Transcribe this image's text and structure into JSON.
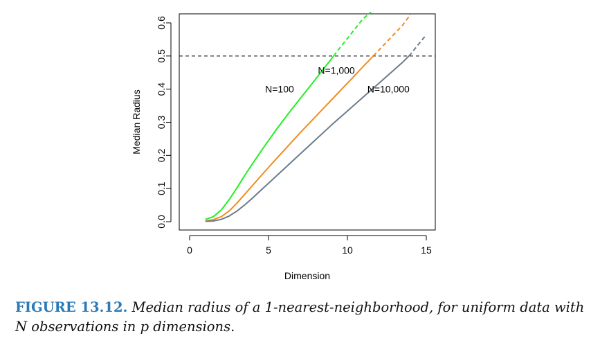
{
  "chart_data": {
    "type": "line",
    "xlabel": "Dimension",
    "ylabel": "Median Radius",
    "xlim": [
      0,
      15
    ],
    "ylim": [
      0,
      0.6
    ],
    "x_ticks": [
      0,
      5,
      10,
      15
    ],
    "y_ticks": [
      0.0,
      0.1,
      0.2,
      0.3,
      0.4,
      0.5,
      0.6
    ],
    "x_tick_labels": [
      "0",
      "5",
      "10",
      "15"
    ],
    "y_tick_labels": [
      "0.0",
      "0.1",
      "0.2",
      "0.3",
      "0.4",
      "0.5",
      "0.6"
    ],
    "grid": false,
    "reference_line": {
      "y": 0.5,
      "style": "dashed",
      "color": "#000000"
    },
    "series": [
      {
        "name": "N=100",
        "color": "#22ee22",
        "x": [
          1,
          1.5,
          2,
          2.5,
          3,
          3.5,
          4,
          4.5,
          5,
          5.5,
          6,
          6.5,
          7,
          7.5,
          8,
          8.5,
          9,
          9.5,
          10,
          10.5,
          11,
          11.5
        ],
        "y": [
          0.007,
          0.015,
          0.035,
          0.066,
          0.102,
          0.14,
          0.176,
          0.211,
          0.245,
          0.278,
          0.31,
          0.341,
          0.371,
          0.401,
          0.431,
          0.462,
          0.492,
          0.523,
          0.553,
          0.583,
          0.613,
          0.632
        ]
      },
      {
        "name": "N=1,000",
        "color": "#f08c1e",
        "x": [
          1,
          1.5,
          2,
          2.5,
          3,
          3.5,
          4,
          4.5,
          5,
          5.5,
          6,
          6.5,
          7,
          7.5,
          8,
          8.5,
          9,
          9.5,
          10,
          10.5,
          11,
          11.5,
          12,
          12.5,
          13,
          13.5,
          14
        ],
        "y": [
          0.002,
          0.006,
          0.015,
          0.032,
          0.056,
          0.083,
          0.11,
          0.137,
          0.164,
          0.19,
          0.216,
          0.242,
          0.268,
          0.293,
          0.318,
          0.343,
          0.368,
          0.393,
          0.418,
          0.443,
          0.468,
          0.493,
          0.518,
          0.543,
          0.568,
          0.593,
          0.625
        ]
      },
      {
        "name": "N=10,000",
        "color": "#6b7b8b",
        "x": [
          1,
          1.5,
          2,
          2.5,
          3,
          3.5,
          4,
          4.5,
          5,
          5.5,
          6,
          6.5,
          7,
          7.5,
          8,
          8.5,
          9,
          9.5,
          10,
          10.5,
          11,
          11.5,
          12,
          12.5,
          13,
          13.5,
          14,
          14.5,
          15
        ],
        "y": [
          0.001,
          0.002,
          0.007,
          0.017,
          0.032,
          0.051,
          0.072,
          0.094,
          0.116,
          0.138,
          0.16,
          0.182,
          0.204,
          0.226,
          0.248,
          0.27,
          0.292,
          0.313,
          0.334,
          0.355,
          0.376,
          0.397,
          0.418,
          0.439,
          0.46,
          0.481,
          0.505,
          0.535,
          0.564
        ]
      }
    ],
    "annotations": [
      {
        "text": "N=100",
        "x": 5.7,
        "y": 0.4
      },
      {
        "text": "N=1,000",
        "x": 9.3,
        "y": 0.457
      },
      {
        "text": "N=10,000",
        "x": 12.6,
        "y": 0.4
      }
    ]
  },
  "caption": {
    "label": "FIGURE 13.12.",
    "text": "Median radius of a 1-nearest-neighborhood, for uniform data with N observations in p dimensions."
  }
}
